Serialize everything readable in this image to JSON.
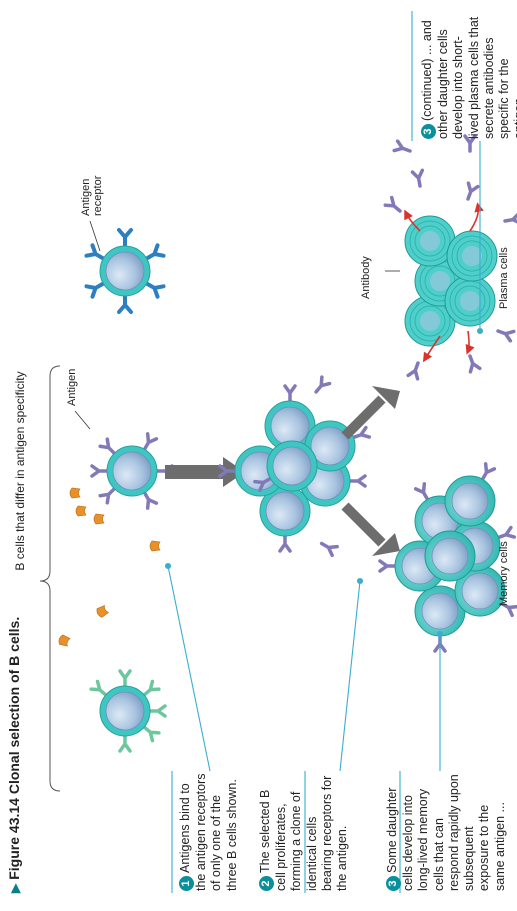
{
  "figure": {
    "title_prefix": "Figure 43.14",
    "title": "Clonal selection of B cells.",
    "triangle_icon": "play-triangle-icon"
  },
  "labels": {
    "b_cells_differ": "B cells that differ in antigen specificity",
    "antigen": "Antigen",
    "antigen_receptor": "Antigen receptor",
    "antibody": "Antibody",
    "memory_cells": "Memory cells",
    "plasma_cells": "Plasma cells"
  },
  "steps": [
    {
      "num": "1",
      "text": "Antigens bind to the antigen receptors of only one of the three B cells shown."
    },
    {
      "num": "2",
      "text": "The selected B cell proliferates, forming a clone of identical cells bearing receptors for the antigen."
    },
    {
      "num": "3",
      "text": "Some daughter cells develop into long-lived memory cells that can respond rapidly upon subsequent exposure to the same antigen ..."
    },
    {
      "num": "3",
      "text": "(continued) ... and other daughter cells develop into short-lived plasma cells that secrete antibodies specific for the antigen."
    }
  ],
  "colors": {
    "cell_outer": "#3ec6c2",
    "cell_inner": "#a9c4e0",
    "receptor_purple": "#8179b8",
    "receptor_blue": "#2d7fc1",
    "receptor_green": "#6cc79e",
    "antigen_orange": "#e8912a",
    "callout_line": "#3aaecf",
    "arrow_gray": "#6d6d6d",
    "secretion_red": "#d9342b"
  }
}
